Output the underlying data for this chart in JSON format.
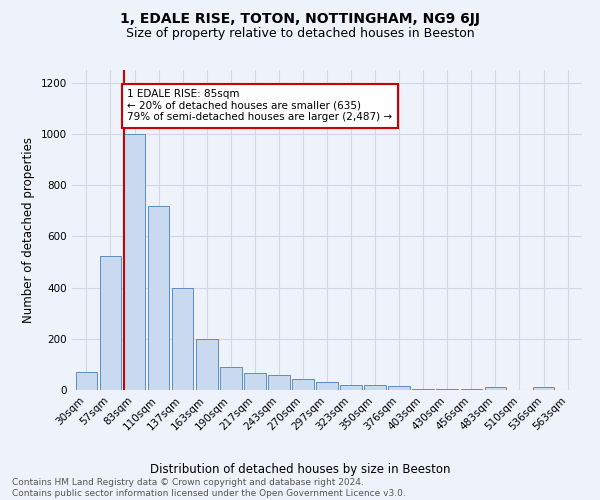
{
  "title": "1, EDALE RISE, TOTON, NOTTINGHAM, NG9 6JJ",
  "subtitle": "Size of property relative to detached houses in Beeston",
  "xlabel": "Distribution of detached houses by size in Beeston",
  "ylabel": "Number of detached properties",
  "categories": [
    "30sqm",
    "57sqm",
    "83sqm",
    "110sqm",
    "137sqm",
    "163sqm",
    "190sqm",
    "217sqm",
    "243sqm",
    "270sqm",
    "297sqm",
    "323sqm",
    "350sqm",
    "376sqm",
    "403sqm",
    "430sqm",
    "456sqm",
    "483sqm",
    "510sqm",
    "536sqm",
    "563sqm"
  ],
  "values": [
    70,
    525,
    1000,
    720,
    400,
    200,
    88,
    65,
    60,
    42,
    32,
    18,
    18,
    17,
    5,
    5,
    5,
    10,
    0,
    13,
    0
  ],
  "bar_color": "#c9d9f0",
  "bar_edge_color": "#5b8ec4",
  "red_line_x": 2.0,
  "annotation_text": "1 EDALE RISE: 85sqm\n← 20% of detached houses are smaller (635)\n79% of semi-detached houses are larger (2,487) →",
  "annotation_box_color": "#ffffff",
  "annotation_box_edge_color": "#cc0000",
  "ylim": [
    0,
    1250
  ],
  "yticks": [
    0,
    200,
    400,
    600,
    800,
    1000,
    1200
  ],
  "footer_text": "Contains HM Land Registry data © Crown copyright and database right 2024.\nContains public sector information licensed under the Open Government Licence v3.0.",
  "background_color": "#eef2fa",
  "title_fontsize": 10,
  "subtitle_fontsize": 9,
  "axis_label_fontsize": 8.5,
  "tick_fontsize": 7.5,
  "annotation_fontsize": 7.5,
  "footer_fontsize": 6.5
}
